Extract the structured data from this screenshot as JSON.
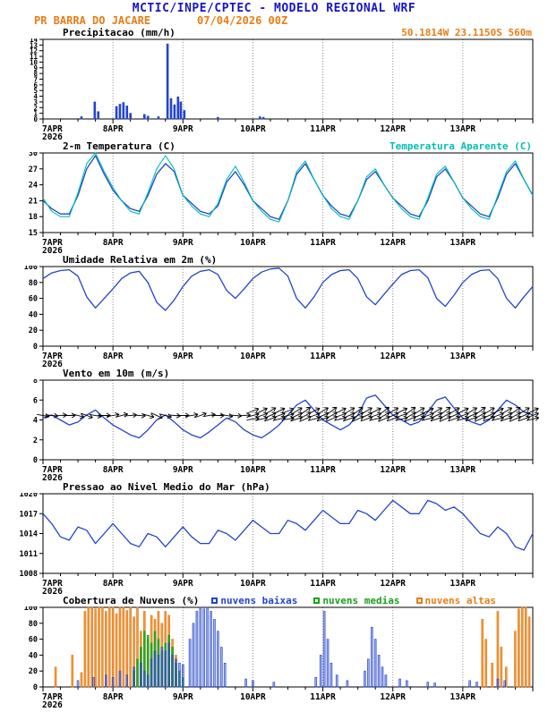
{
  "header": {
    "title": "MCTIC/INPE/CPTEC - MODELO REGIONAL WRF",
    "station": "PR BARRA DO JACARE",
    "run": "07/04/2026 00Z",
    "location": "50.1814W 23.1150S 560m"
  },
  "axis": {
    "day_labels": [
      "7APR",
      "8APR",
      "9APR",
      "10APR",
      "11APR",
      "12APR",
      "13APR"
    ],
    "year": "2026",
    "days": 7
  },
  "colors": {
    "blue": "#2244cc",
    "cyan": "#00bfb4",
    "orange": "#e87d14",
    "green": "#18a018",
    "header_blue": "#1616c8",
    "black": "#000000"
  },
  "chart_data": [
    {
      "id": "precip",
      "type": "bar",
      "title": "Precipitacao (mm/h)",
      "ylim": [
        0,
        14
      ],
      "yticks": [
        0,
        1,
        2,
        3,
        4,
        5,
        6,
        7,
        8,
        9,
        10,
        11,
        12,
        13,
        14
      ],
      "color_key": "blue",
      "bars": [
        [
          0.55,
          0.4
        ],
        [
          0.74,
          3.0
        ],
        [
          0.79,
          1.3
        ],
        [
          1.05,
          2.2
        ],
        [
          1.1,
          2.6
        ],
        [
          1.15,
          2.9
        ],
        [
          1.2,
          2.3
        ],
        [
          1.25,
          1.0
        ],
        [
          1.45,
          0.8
        ],
        [
          1.5,
          0.5
        ],
        [
          1.65,
          0.4
        ],
        [
          1.78,
          13.2
        ],
        [
          1.83,
          3.6
        ],
        [
          1.88,
          2.5
        ],
        [
          1.93,
          3.9
        ],
        [
          1.97,
          3.0
        ],
        [
          2.02,
          1.5
        ],
        [
          2.5,
          0.3
        ],
        [
          3.1,
          0.4
        ],
        [
          3.15,
          0.3
        ]
      ]
    },
    {
      "id": "temp",
      "type": "line",
      "title": "2-m Temperatura (C)",
      "right_label": "Temperatura Aparente (C)",
      "ylim": [
        15,
        30
      ],
      "yticks": [
        15,
        18,
        21,
        24,
        27,
        30
      ],
      "x_step_days": 0.125,
      "series": [
        {
          "name": "2-m Temperatura",
          "color_key": "blue",
          "values": [
            21,
            19.5,
            18.5,
            18.5,
            22,
            27,
            29.5,
            26,
            23,
            21,
            19.5,
            19,
            22,
            26,
            28,
            26.5,
            22,
            20.5,
            19,
            18.5,
            20,
            24.5,
            26.5,
            24,
            21,
            19.5,
            18,
            17.5,
            21,
            26,
            28,
            25,
            22,
            20,
            18.5,
            18,
            21,
            25,
            26.5,
            24,
            21.5,
            20,
            18.5,
            18,
            21,
            25.5,
            27,
            24.5,
            21.5,
            20,
            18.5,
            18,
            21.5,
            26,
            28,
            25,
            22
          ]
        },
        {
          "name": "Temperatura Aparente",
          "color_key": "cyan",
          "values": [
            21.5,
            19,
            18,
            18,
            22.5,
            28,
            30,
            26.5,
            23.5,
            21,
            19,
            18.5,
            22.5,
            27,
            29.5,
            27,
            22,
            20,
            18.5,
            18,
            20.5,
            25,
            27.5,
            24.5,
            21,
            19,
            17.5,
            17,
            21,
            26.5,
            28.5,
            25,
            22,
            19.5,
            18,
            17.5,
            21,
            25.5,
            27,
            24,
            21.5,
            19.5,
            18,
            17.5,
            21.5,
            26,
            27.5,
            24.5,
            21.5,
            19.5,
            18,
            17.5,
            22,
            26.5,
            28.5,
            25,
            22
          ]
        }
      ]
    },
    {
      "id": "humidity",
      "type": "line",
      "title": "Umidade Relativa em 2m (%)",
      "ylim": [
        0,
        100
      ],
      "yticks": [
        0,
        20,
        40,
        60,
        80,
        100
      ],
      "x_step_days": 0.125,
      "series": [
        {
          "name": "Umidade Relativa",
          "color_key": "blue",
          "values": [
            85,
            92,
            95,
            96,
            88,
            62,
            48,
            60,
            72,
            85,
            92,
            94,
            80,
            55,
            45,
            58,
            75,
            88,
            94,
            96,
            90,
            70,
            60,
            72,
            85,
            93,
            97,
            98,
            88,
            60,
            48,
            62,
            80,
            90,
            95,
            96,
            85,
            62,
            52,
            65,
            78,
            90,
            95,
            96,
            86,
            60,
            50,
            64,
            80,
            90,
            95,
            96,
            85,
            60,
            48,
            62,
            75
          ]
        }
      ]
    },
    {
      "id": "wind",
      "type": "line",
      "title": "Vento em 10m (m/s)",
      "ylim": [
        0,
        8
      ],
      "yticks": [
        0,
        2,
        4,
        6,
        8
      ],
      "x_step_days": 0.125,
      "series": [
        {
          "name": "Vento em 10m",
          "color_key": "blue",
          "values": [
            4.2,
            4.5,
            4.0,
            3.5,
            3.8,
            4.5,
            5.0,
            4.2,
            3.5,
            3.0,
            2.5,
            2.2,
            3.0,
            4.0,
            4.5,
            3.8,
            3.0,
            2.5,
            2.2,
            2.8,
            3.5,
            4.2,
            3.8,
            3.0,
            2.5,
            2.2,
            2.8,
            3.5,
            4.5,
            5.5,
            6.0,
            5.0,
            4.0,
            3.5,
            3.0,
            3.5,
            4.5,
            6.2,
            6.5,
            5.5,
            4.5,
            4.0,
            3.5,
            3.8,
            4.8,
            6.0,
            6.3,
            5.2,
            4.2,
            3.8,
            3.5,
            4.0,
            5.0,
            6.0,
            5.5,
            4.8,
            4.5
          ]
        }
      ],
      "arrows": {
        "y": 4.45,
        "angles": [
          10,
          5,
          -5,
          0,
          15,
          20,
          10,
          0,
          -10,
          -15,
          -5,
          5,
          15,
          25,
          15,
          5,
          0,
          -10,
          -20,
          -10,
          0,
          10,
          5,
          -5,
          -15,
          -20,
          -25,
          -20,
          -15,
          -25,
          -30,
          -20,
          -25,
          -30,
          -20,
          -25,
          -30,
          -25,
          -20,
          -30,
          -25,
          -20,
          -30,
          -25,
          -20,
          -25,
          -30,
          -25,
          -20,
          -25,
          -30,
          -25,
          -20,
          -25,
          -30,
          -25,
          -20
        ]
      }
    },
    {
      "id": "pressure",
      "type": "line",
      "title": "Pressao ao Nivel Medio do Mar (hPa)",
      "ylim": [
        1008,
        1020
      ],
      "yticks": [
        1008,
        1011,
        1014,
        1017,
        1020
      ],
      "x_step_days": 0.125,
      "series": [
        {
          "name": "Pressao ao Nivel Medio do Mar",
          "color_key": "blue",
          "values": [
            1017,
            1015.5,
            1013.5,
            1013,
            1015,
            1014.5,
            1012.5,
            1014,
            1015.5,
            1014,
            1012.5,
            1012,
            1014,
            1013.5,
            1012,
            1013.5,
            1015,
            1013.5,
            1012.5,
            1012.5,
            1014.5,
            1014,
            1013,
            1014.5,
            1016,
            1015,
            1014,
            1014,
            1016,
            1015.5,
            1014.5,
            1016,
            1017.5,
            1016.5,
            1015.5,
            1015.5,
            1017.5,
            1017,
            1016,
            1017.5,
            1019,
            1018,
            1017,
            1017,
            1019,
            1018.5,
            1017.5,
            1018,
            1017,
            1015.5,
            1014,
            1013.5,
            1015,
            1014,
            1012,
            1011.5,
            1014
          ]
        }
      ]
    },
    {
      "id": "clouds",
      "type": "bar",
      "title": "Cobertura de Nuvens (%)",
      "ylim": [
        0,
        100
      ],
      "yticks": [
        0,
        20,
        40,
        60,
        80,
        100
      ],
      "series": [
        {
          "name": "nuvens altas",
          "color_key": "orange",
          "bars": [
            [
              0.18,
              25
            ],
            [
              0.42,
              40
            ],
            [
              0.55,
              18
            ],
            [
              0.6,
              95
            ],
            [
              0.65,
              100
            ],
            [
              0.7,
              100
            ],
            [
              0.75,
              98
            ],
            [
              0.8,
              100
            ],
            [
              0.85,
              100
            ],
            [
              0.9,
              95
            ],
            [
              0.95,
              100
            ],
            [
              1.0,
              100
            ],
            [
              1.05,
              92
            ],
            [
              1.1,
              100
            ],
            [
              1.15,
              100
            ],
            [
              1.2,
              96
            ],
            [
              1.25,
              100
            ],
            [
              1.3,
              88
            ],
            [
              1.35,
              100
            ],
            [
              1.4,
              70
            ],
            [
              1.45,
              95
            ],
            [
              1.5,
              60
            ],
            [
              1.55,
              90
            ],
            [
              1.6,
              85
            ],
            [
              1.65,
              95
            ],
            [
              1.7,
              80
            ],
            [
              1.75,
              95
            ],
            [
              1.8,
              90
            ],
            [
              1.85,
              60
            ],
            [
              1.9,
              40
            ],
            [
              6.28,
              85
            ],
            [
              6.33,
              60
            ],
            [
              6.42,
              30
            ],
            [
              6.5,
              95
            ],
            [
              6.55,
              50
            ],
            [
              6.62,
              25
            ],
            [
              6.75,
              70
            ],
            [
              6.8,
              98
            ],
            [
              6.85,
              100
            ],
            [
              6.9,
              100
            ],
            [
              6.95,
              88
            ]
          ]
        },
        {
          "name": "nuvens medias",
          "color_key": "green",
          "bars": [
            [
              1.3,
              20
            ],
            [
              1.35,
              35
            ],
            [
              1.4,
              50
            ],
            [
              1.45,
              70
            ],
            [
              1.5,
              65
            ],
            [
              1.55,
              55
            ],
            [
              1.6,
              70
            ],
            [
              1.65,
              60
            ],
            [
              1.7,
              45
            ],
            [
              1.75,
              55
            ],
            [
              1.8,
              65
            ],
            [
              1.85,
              50
            ],
            [
              1.9,
              30
            ],
            [
              1.95,
              20
            ],
            [
              2.0,
              12
            ]
          ]
        },
        {
          "name": "nuvens baixas",
          "color_key": "blue",
          "bars": [
            [
              0.5,
              8
            ],
            [
              0.72,
              12
            ],
            [
              0.9,
              15
            ],
            [
              1.0,
              12
            ],
            [
              1.1,
              20
            ],
            [
              1.2,
              15
            ],
            [
              1.3,
              25
            ],
            [
              1.4,
              30
            ],
            [
              1.45,
              20
            ],
            [
              1.5,
              15
            ],
            [
              1.55,
              35
            ],
            [
              1.6,
              45
            ],
            [
              1.65,
              40
            ],
            [
              1.7,
              50
            ],
            [
              1.75,
              45
            ],
            [
              1.8,
              55
            ],
            [
              1.85,
              40
            ],
            [
              1.9,
              35
            ],
            [
              1.95,
              30
            ],
            [
              2.0,
              28
            ],
            [
              2.1,
              60
            ],
            [
              2.15,
              80
            ],
            [
              2.2,
              95
            ],
            [
              2.25,
              100
            ],
            [
              2.3,
              98
            ],
            [
              2.35,
              100
            ],
            [
              2.4,
              95
            ],
            [
              2.45,
              85
            ],
            [
              2.5,
              70
            ],
            [
              2.55,
              50
            ],
            [
              2.6,
              30
            ],
            [
              2.9,
              10
            ],
            [
              3.0,
              8
            ],
            [
              3.3,
              6
            ],
            [
              3.9,
              12
            ],
            [
              3.97,
              40
            ],
            [
              4.02,
              95
            ],
            [
              4.07,
              60
            ],
            [
              4.12,
              30
            ],
            [
              4.2,
              15
            ],
            [
              4.35,
              8
            ],
            [
              4.6,
              20
            ],
            [
              4.65,
              35
            ],
            [
              4.7,
              75
            ],
            [
              4.75,
              60
            ],
            [
              4.8,
              40
            ],
            [
              4.85,
              25
            ],
            [
              4.9,
              15
            ],
            [
              5.1,
              10
            ],
            [
              5.2,
              8
            ],
            [
              5.5,
              6
            ],
            [
              5.6,
              5
            ],
            [
              6.1,
              8
            ],
            [
              6.2,
              6
            ],
            [
              6.5,
              10
            ],
            [
              6.6,
              8
            ]
          ]
        }
      ]
    }
  ]
}
